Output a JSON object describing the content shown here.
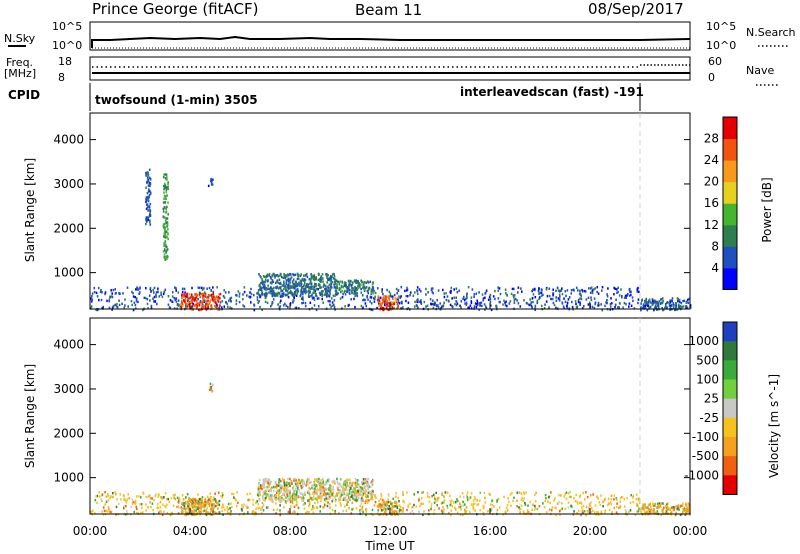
{
  "header": {
    "station": "Prince George (fitACF)",
    "beam": "Beam 11",
    "date": "08/Sep/2017"
  },
  "top_strip": {
    "nsky_label": "N.Sky",
    "nsky_ticks": [
      "10^5",
      "10^0"
    ],
    "nsearch_label": "N.Search",
    "nsearch_ticks": [
      "10^5",
      "10^0"
    ],
    "freq_label": "Freq.",
    "freq_unit": "[MHz]",
    "freq_ticks": [
      "18",
      "8"
    ],
    "nave_label": "Nave",
    "nave_ticks": [
      "60",
      "0"
    ],
    "cpid_label": "CPID",
    "cpid_programs": [
      {
        "name": "twofsound (1-min) 3505",
        "start_hour": 0
      },
      {
        "name": "interleavedscan (fast) -191",
        "start_hour": 22
      }
    ]
  },
  "x_axis": {
    "label": "Time UT",
    "ticks": [
      "00:00",
      "04:00",
      "08:00",
      "12:00",
      "16:00",
      "20:00",
      "00:00"
    ],
    "range_hours": [
      0,
      24
    ]
  },
  "chart_data": [
    {
      "type": "heatmap",
      "panel": "power",
      "ylabel": "Slant Range [km]",
      "yticks": [
        "1000",
        "2000",
        "3000",
        "4000"
      ],
      "ylim": [
        180,
        4600
      ],
      "xlim": [
        0,
        24
      ],
      "colorbar": {
        "label": "Power [dB]",
        "ticks": [
          "4",
          "8",
          "12",
          "16",
          "20",
          "24",
          "28"
        ],
        "range": [
          0,
          32
        ],
        "colors": [
          "#0000ff",
          "#1f4fc0",
          "#2e7f4f",
          "#45b52f",
          "#e6d21e",
          "#f79a1c",
          "#f25410",
          "#e40000"
        ]
      },
      "marker_hour": 22,
      "regions": [
        {
          "t0": 0.0,
          "t1": 22.0,
          "r0": 180,
          "r1": 700,
          "value": 6,
          "note": "near-range scatter"
        },
        {
          "t0": 3.6,
          "t1": 5.2,
          "r0": 180,
          "r1": 550,
          "value": 27
        },
        {
          "t0": 6.7,
          "t1": 9.8,
          "r0": 500,
          "r1": 1000,
          "value": 8
        },
        {
          "t0": 9.8,
          "t1": 11.3,
          "r0": 550,
          "r1": 850,
          "value": 9
        },
        {
          "t0": 11.5,
          "t1": 12.3,
          "r0": 180,
          "r1": 500,
          "value": 26
        },
        {
          "t0": 2.2,
          "t1": 2.4,
          "r0": 2100,
          "r1": 3450,
          "value": 6
        },
        {
          "t0": 2.9,
          "t1": 3.1,
          "r0": 1300,
          "r1": 3250,
          "value": 12
        },
        {
          "t0": 4.7,
          "t1": 4.9,
          "r0": 2950,
          "r1": 3150,
          "value": 5
        },
        {
          "t0": 22.0,
          "t1": 24.0,
          "r0": 180,
          "r1": 450,
          "value": 7
        }
      ]
    },
    {
      "type": "heatmap",
      "panel": "velocity",
      "ylabel": "Slant Range [km]",
      "yticks": [
        "1000",
        "2000",
        "3000",
        "4000"
      ],
      "ylim": [
        180,
        4600
      ],
      "xlim": [
        0,
        24
      ],
      "colorbar": {
        "label": "Velocity [m s^-1]",
        "ticks": [
          "1000",
          "500",
          "100",
          "25",
          "-25",
          "-100",
          "-500",
          "-1000"
        ],
        "colors": [
          "#1f3fc0",
          "#2e7a3a",
          "#3aaa3a",
          "#70d040",
          "#c8c8c8",
          "#f5c21e",
          "#f5a020",
          "#f06010",
          "#e40000"
        ]
      },
      "marker_hour": 22,
      "regions": [
        {
          "t0": 0.0,
          "t1": 22.0,
          "r0": 180,
          "r1": 700,
          "value": -60,
          "note": "mixed near-range"
        },
        {
          "t0": 3.6,
          "t1": 5.2,
          "r0": 180,
          "r1": 550,
          "value": -150
        },
        {
          "t0": 6.7,
          "t1": 11.3,
          "r0": 500,
          "r1": 1000,
          "value": 0
        },
        {
          "t0": 11.5,
          "t1": 12.3,
          "r0": 180,
          "r1": 500,
          "value": -200
        },
        {
          "t0": 4.7,
          "t1": 4.9,
          "r0": 2950,
          "r1": 3150,
          "value": 0
        },
        {
          "t0": 22.0,
          "t1": 24.0,
          "r0": 180,
          "r1": 450,
          "value": -120
        }
      ]
    }
  ]
}
